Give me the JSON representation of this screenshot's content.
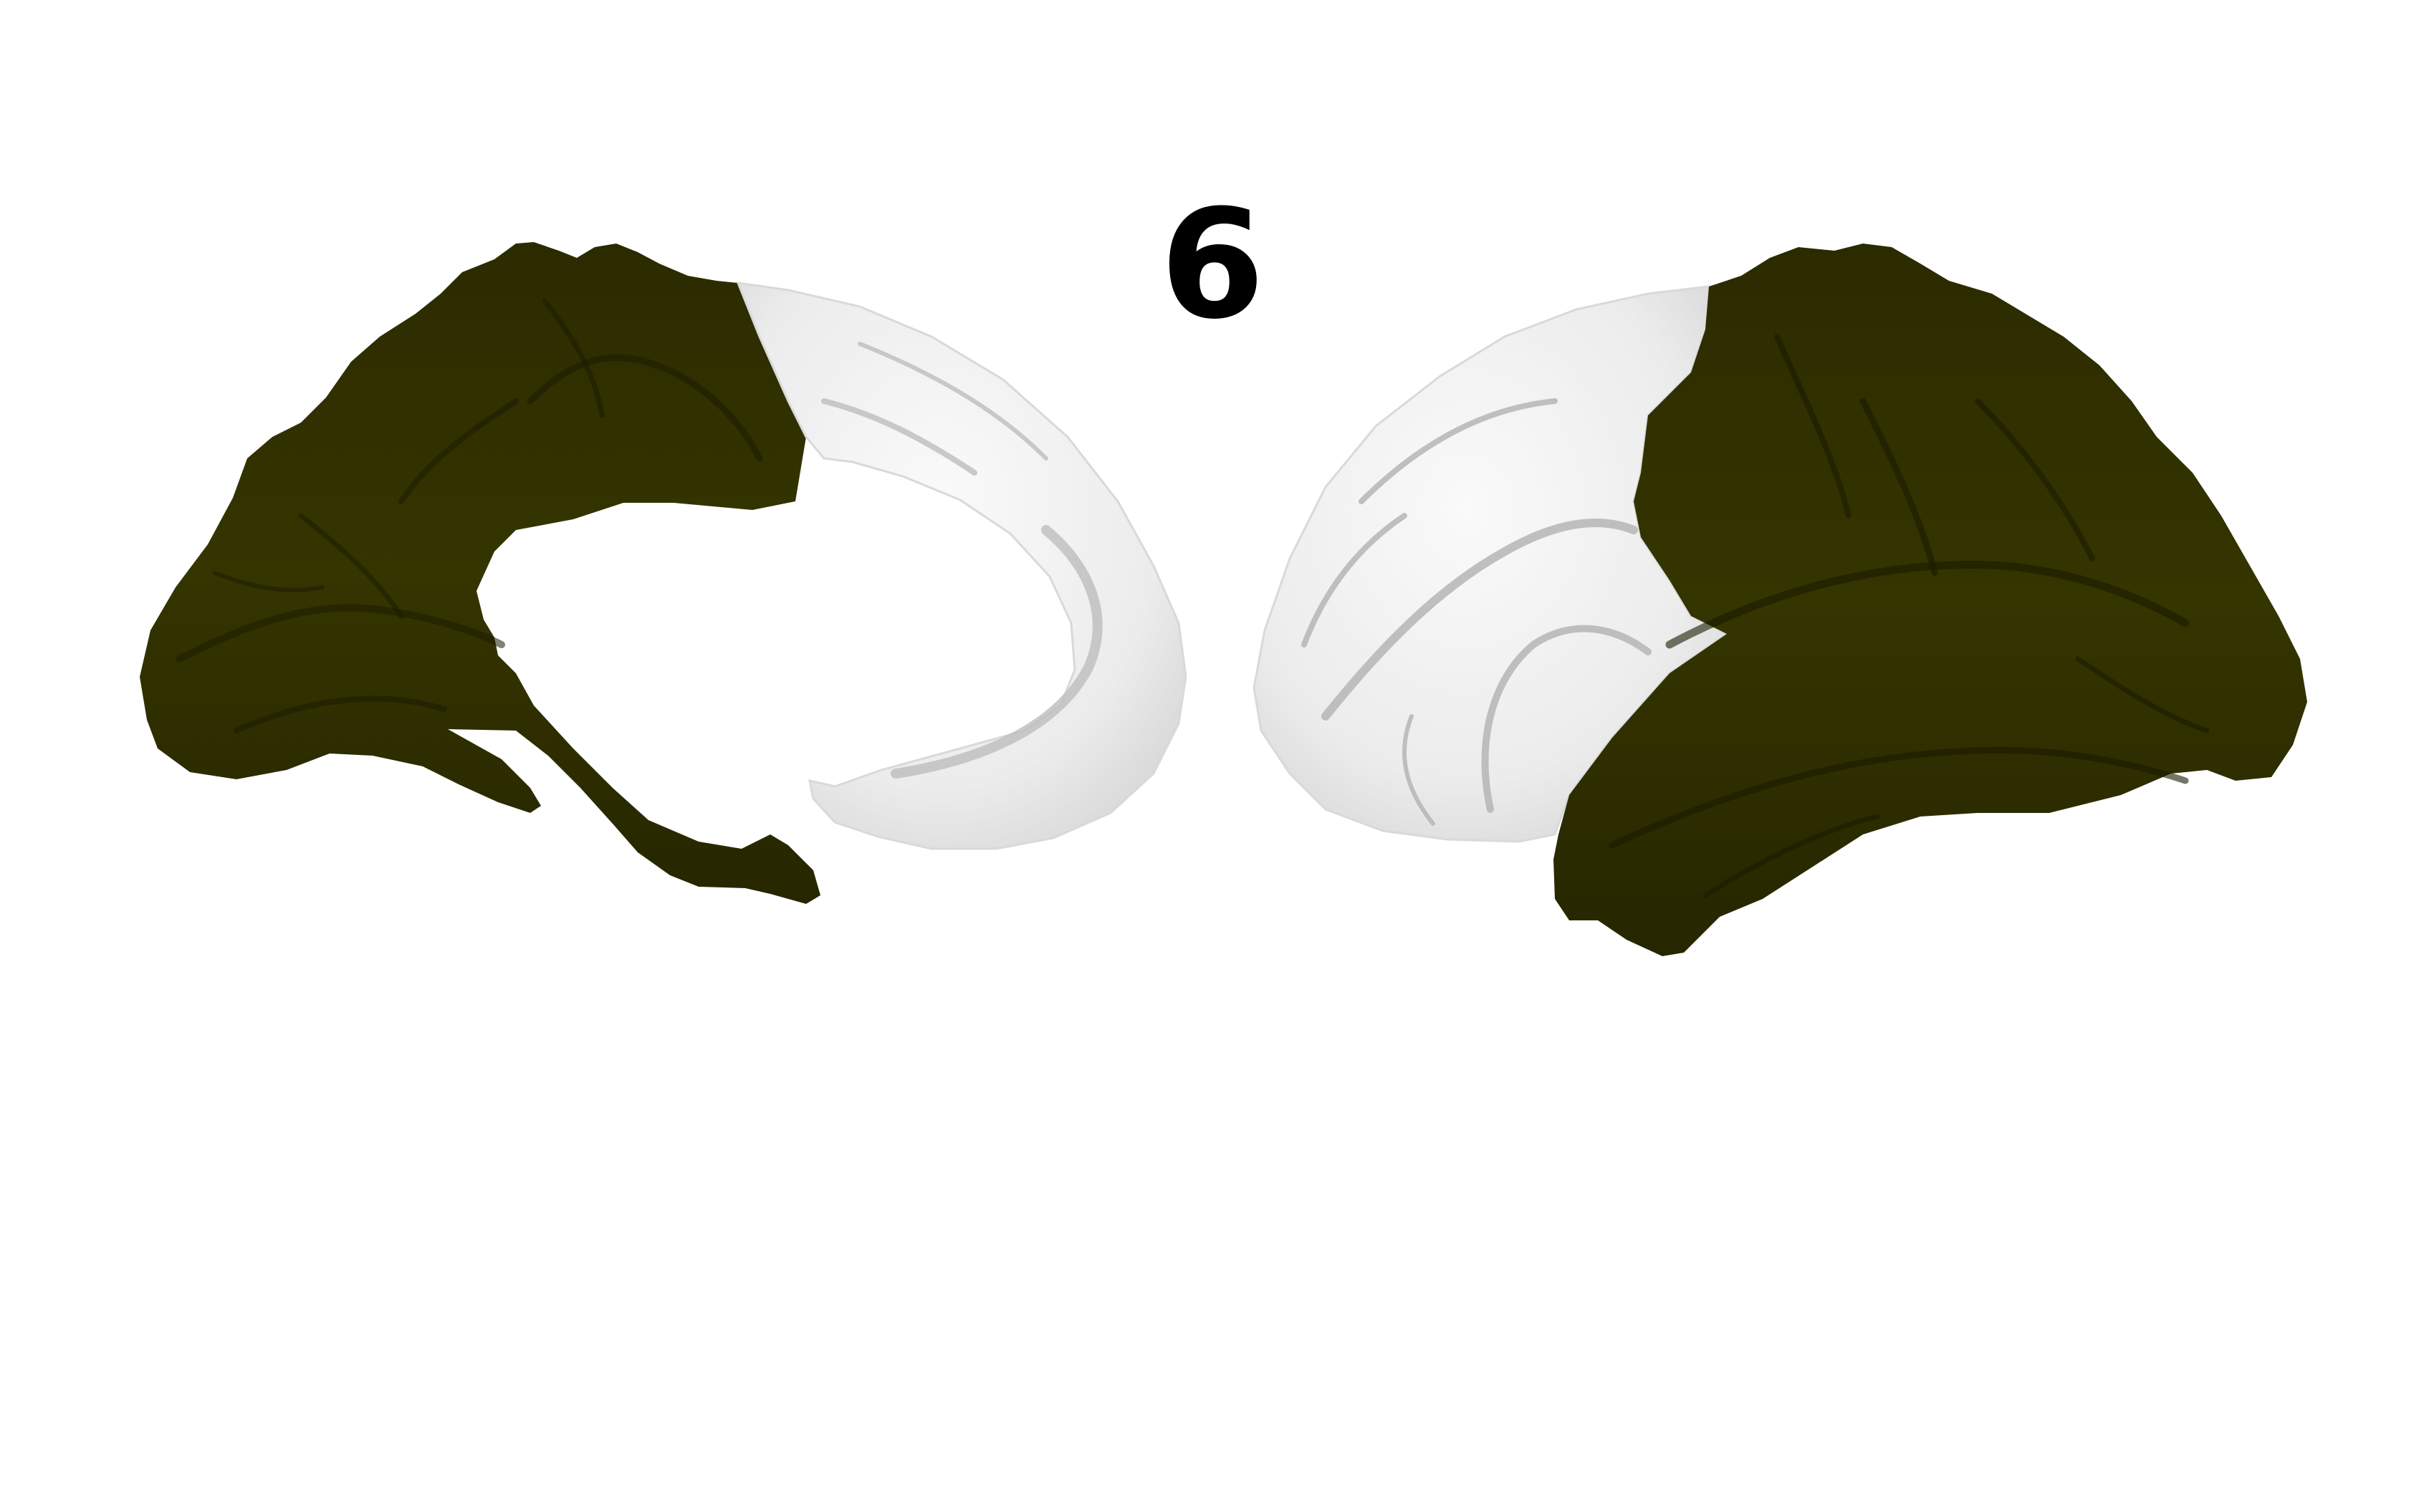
{
  "figure": {
    "label": "6",
    "colors": {
      "background": "#ffffff",
      "highlight": "#333300",
      "highlight_dark": "#262600",
      "cortex": "#eeeeee",
      "cortex_shadow": "#bdbdbd"
    }
  },
  "views": [
    {
      "view": "medial",
      "hemisphere": "left"
    },
    {
      "view": "lateral",
      "hemisphere": "right"
    }
  ]
}
